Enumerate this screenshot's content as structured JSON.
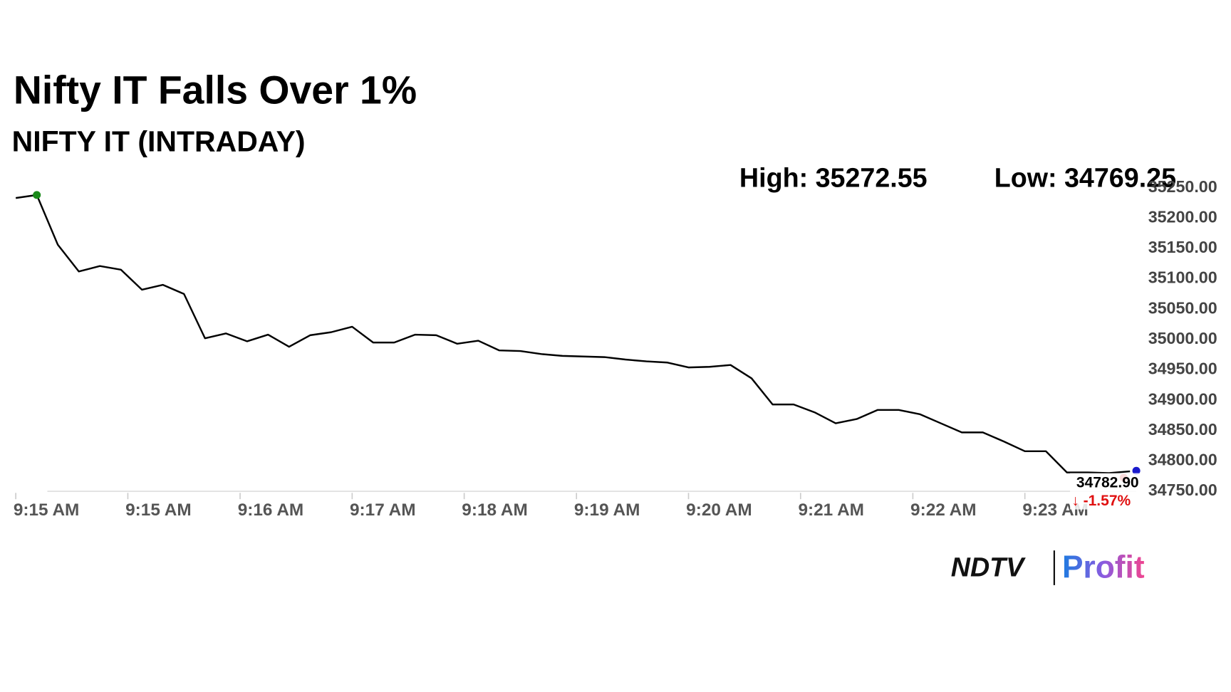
{
  "chart_data": {
    "type": "line",
    "title": "Nifty IT Falls Over 1%",
    "subtitle": "NIFTY IT (INTRADAY)",
    "high_label": "High: 35272.55",
    "low_label": "Low: 34769.25",
    "last_label": "34782.90",
    "change_label": "↓ -1.57%",
    "logo_left": "NDTV",
    "logo_right": "Profit",
    "x": [
      0,
      1,
      2,
      3,
      4,
      5,
      6,
      7,
      8,
      9,
      10,
      11,
      12,
      13,
      14,
      15,
      16,
      17,
      18,
      19,
      20,
      21,
      22,
      23,
      24,
      25,
      26,
      27,
      28,
      29,
      30,
      31,
      32,
      33,
      34,
      35,
      36,
      37,
      38,
      39,
      40,
      41,
      42,
      43,
      44,
      45,
      46,
      47,
      48,
      49,
      50,
      51,
      52,
      53
    ],
    "series": [
      {
        "color": "#000000",
        "values": [
          35233,
          35238,
          35156,
          35112,
          35121,
          35115,
          35082,
          35090,
          35075,
          35002,
          35010,
          34997,
          35008,
          34988,
          35007,
          35012,
          35021,
          34995,
          34995,
          35008,
          35007,
          34993,
          34998,
          34982,
          34981,
          34976,
          34973,
          34972,
          34971,
          34967,
          34964,
          34962,
          34954,
          34955,
          34958,
          34936,
          34893,
          34893,
          34880,
          34862,
          34869,
          34884,
          34884,
          34877,
          34862,
          34847,
          34847,
          34832,
          34816,
          34816,
          34781,
          34781,
          34780,
          34782.9
        ]
      }
    ],
    "xlim": [
      0,
      53.3
    ],
    "xticks": [
      {
        "value": 0,
        "label": "9:15 AM"
      },
      {
        "value": 5.33,
        "label": "9:15 AM"
      },
      {
        "value": 10.67,
        "label": "9:16 AM"
      },
      {
        "value": 16,
        "label": "9:17 AM"
      },
      {
        "value": 21.33,
        "label": "9:18 AM"
      },
      {
        "value": 26.67,
        "label": "9:19 AM"
      },
      {
        "value": 32,
        "label": "9:20 AM"
      },
      {
        "value": 37.33,
        "label": "9:21 AM"
      },
      {
        "value": 42.67,
        "label": "9:22 AM"
      },
      {
        "value": 48,
        "label": "9:23 AM"
      }
    ],
    "ylim": [
      34750,
      35250
    ],
    "yticks": [
      {
        "value": 34750,
        "label": "34750.00"
      },
      {
        "value": 34800,
        "label": "34800.00"
      },
      {
        "value": 34850,
        "label": "34850.00"
      },
      {
        "value": 34900,
        "label": "34900.00"
      },
      {
        "value": 34950,
        "label": "34950.00"
      },
      {
        "value": 35000,
        "label": "35000.00"
      },
      {
        "value": 35050,
        "label": "35050.00"
      },
      {
        "value": 35100,
        "label": "35100.00"
      },
      {
        "value": 35150,
        "label": "35150.00"
      },
      {
        "value": 35200,
        "label": "35200.00"
      },
      {
        "value": 35250,
        "label": "35250.00"
      }
    ]
  }
}
